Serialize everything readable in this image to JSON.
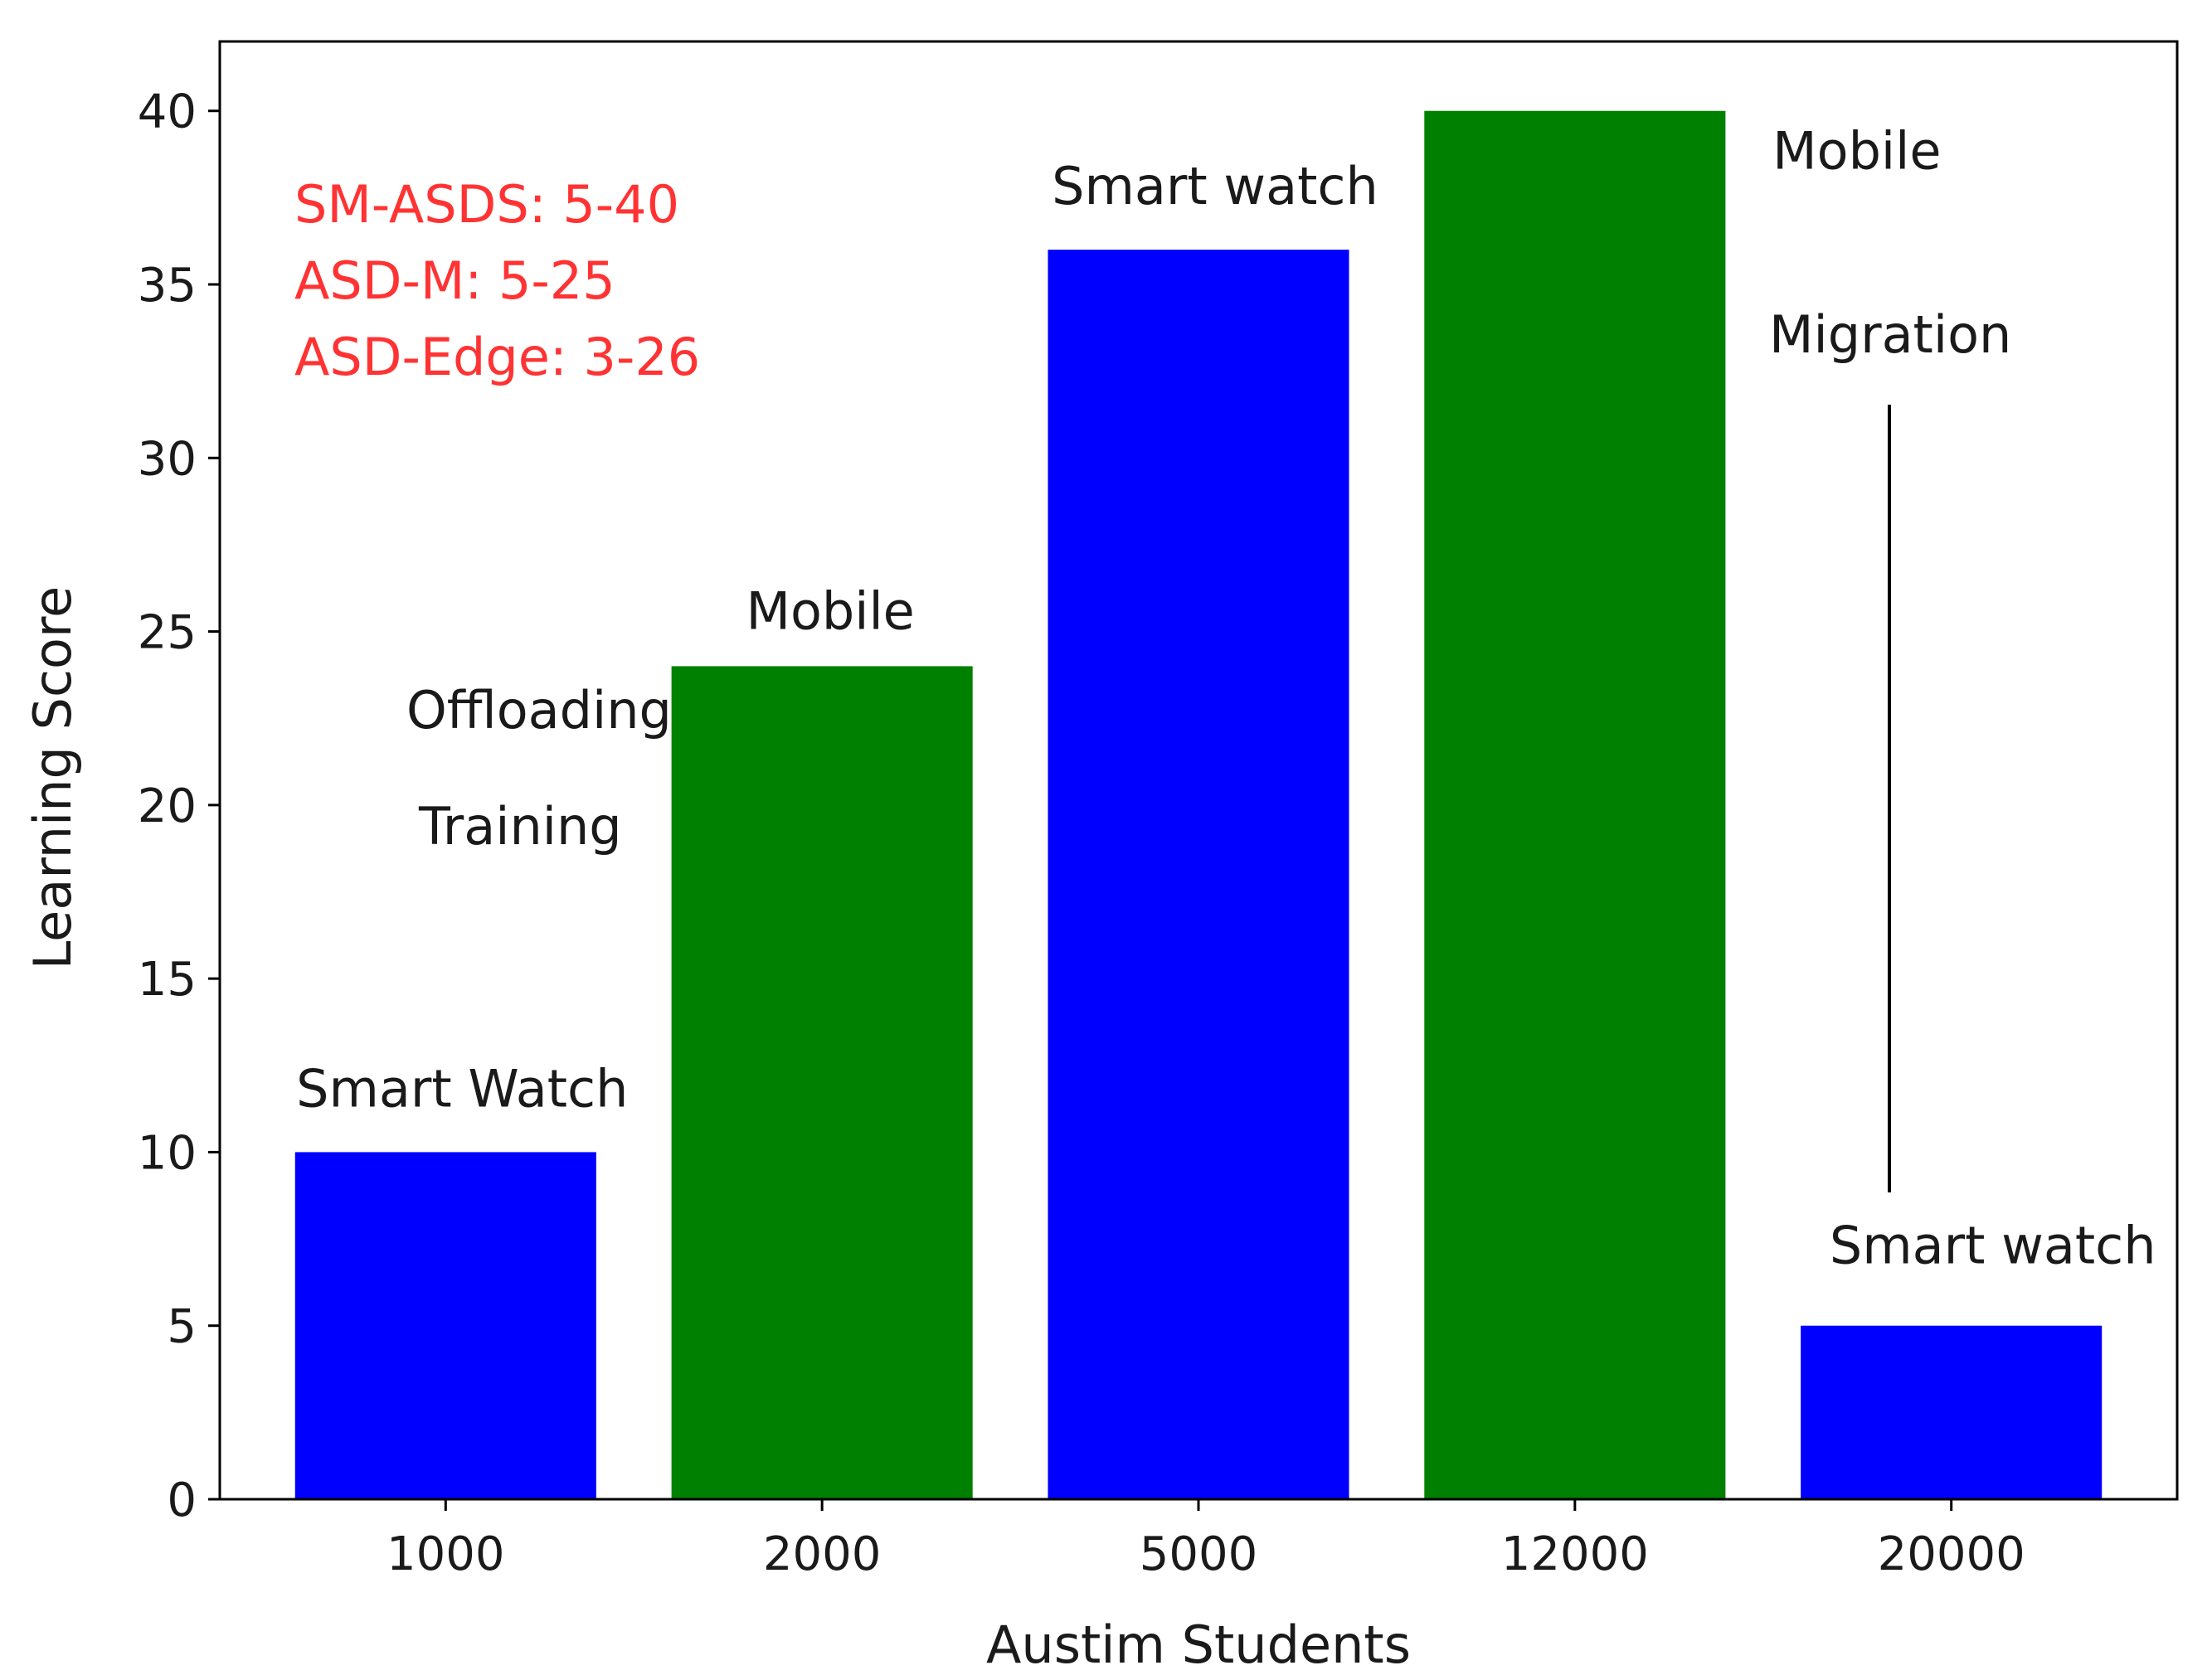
{
  "chart_data": {
    "type": "bar",
    "title": "",
    "xlabel": "Austim Students",
    "ylabel": "Learning Score",
    "categories": [
      "1000",
      "2000",
      "5000",
      "12000",
      "20000"
    ],
    "values": [
      10,
      24,
      36,
      40,
      5
    ],
    "bar_colors": [
      "#0000ff",
      "#008000",
      "#0000ff",
      "#008000",
      "#0000ff"
    ],
    "ylim": [
      0,
      42
    ],
    "yticks": [
      0,
      5,
      10,
      15,
      20,
      25,
      30,
      35,
      40
    ],
    "grid": false,
    "bar_labels": [
      "Smart Watch",
      "Mobile",
      "Smart watch",
      "Mobile",
      "Smart watch"
    ],
    "annotations": [
      "Offloading",
      "Training",
      "Migration"
    ],
    "notes": {
      "color": "#ff3333",
      "lines": [
        "SM-ASDS: 5-40",
        "ASD-M: 5-25",
        "ASD-Edge: 3-26"
      ]
    }
  }
}
